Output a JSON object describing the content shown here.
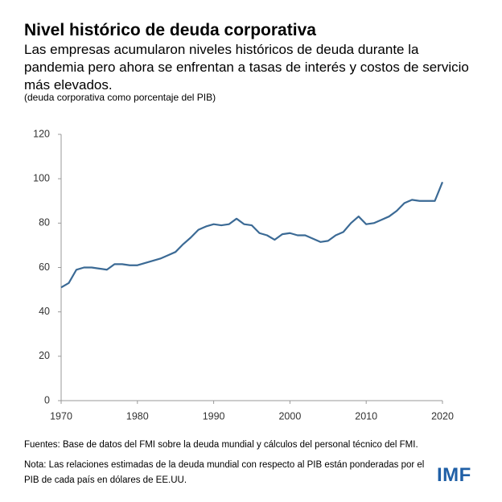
{
  "chart_data": {
    "type": "line",
    "title": "Nivel histórico de deuda corporativa",
    "subtitle": "Las empresas acumularon niveles históricos de deuda durante la pandemia pero ahora se enfrentan a tasas de interés y costos de servicio más elevados.",
    "unit_note": "(deuda corporativa como porcentaje del PIB)",
    "source": "Fuentes: Base de datos del FMI sobre la deuda mundial y cálculos del personal técnico del FMI.",
    "note": "Nota: Las relaciones estimadas de la deuda mundial con respecto al PIB están ponderadas por el PIB de cada país en dólares de EE.UU.",
    "logo": "IMF",
    "x": [
      1970,
      1971,
      1972,
      1973,
      1974,
      1975,
      1976,
      1977,
      1978,
      1979,
      1980,
      1981,
      1982,
      1983,
      1984,
      1985,
      1986,
      1987,
      1988,
      1989,
      1990,
      1991,
      1992,
      1993,
      1994,
      1995,
      1996,
      1997,
      1998,
      1999,
      2000,
      2001,
      2002,
      2003,
      2004,
      2005,
      2006,
      2007,
      2008,
      2009,
      2010,
      2011,
      2012,
      2013,
      2014,
      2015,
      2016,
      2017,
      2018,
      2019,
      2020
    ],
    "values": [
      51,
      53,
      59,
      60,
      60,
      59.5,
      59,
      61.5,
      61.5,
      61,
      61,
      62,
      63,
      64,
      65.5,
      67,
      70.5,
      73.5,
      77,
      78.5,
      79.5,
      79,
      79.5,
      82,
      79.5,
      79,
      75.5,
      74.5,
      72.5,
      75,
      75.5,
      74.5,
      74.5,
      73,
      71.5,
      72,
      74.5,
      76,
      80,
      83,
      79.5,
      80,
      81.5,
      83,
      85.5,
      89,
      90.5,
      90,
      90,
      90,
      98.5
    ],
    "color": "#3b6a95",
    "xlim": [
      1970,
      2020
    ],
    "xticks": [
      1970,
      1980,
      1990,
      2000,
      2010,
      2020
    ],
    "ylim": [
      0,
      120
    ],
    "yticks": [
      0,
      20,
      40,
      60,
      80,
      100,
      120
    ],
    "grid": false
  }
}
